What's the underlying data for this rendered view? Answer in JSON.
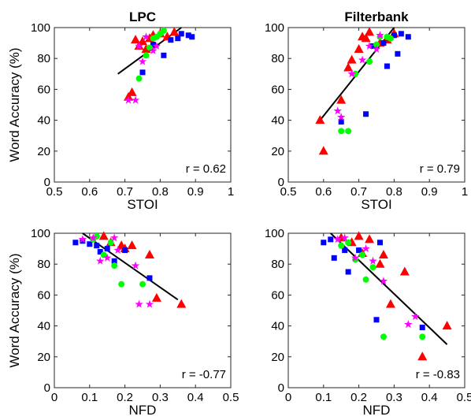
{
  "chart_data": [
    {
      "type": "scatter",
      "title": "LPC",
      "xlabel": "STOI",
      "ylabel": "Word Accuracy (%)",
      "xlim": [
        0.5,
        1
      ],
      "ylim": [
        0,
        100
      ],
      "xticks": [
        "0.5",
        "0.6",
        "0.7",
        "0.8",
        "0.9",
        "1"
      ],
      "yticks": [
        "0",
        "20",
        "40",
        "60",
        "80",
        "100"
      ],
      "annotation": "r = 0.62",
      "fit_line": [
        [
          0.68,
          70
        ],
        [
          0.86,
          100
        ]
      ],
      "series": [
        {
          "marker": "triangle",
          "color": "#ff0000",
          "points": [
            [
              0.71,
              55
            ],
            [
              0.72,
              58
            ],
            [
              0.73,
              92
            ],
            [
              0.74,
              88
            ],
            [
              0.75,
              91
            ],
            [
              0.76,
              86
            ],
            [
              0.77,
              93
            ],
            [
              0.78,
              95
            ],
            [
              0.8,
              96
            ],
            [
              0.82,
              94
            ],
            [
              0.84,
              97
            ]
          ]
        },
        {
          "marker": "square",
          "color": "#0000ff",
          "points": [
            [
              0.75,
              71
            ],
            [
              0.78,
              89
            ],
            [
              0.81,
              82
            ],
            [
              0.83,
              92
            ],
            [
              0.85,
              93
            ],
            [
              0.86,
              96
            ],
            [
              0.88,
              95
            ],
            [
              0.89,
              94
            ]
          ]
        },
        {
          "marker": "circle",
          "color": "#00ff00",
          "points": [
            [
              0.74,
              67
            ],
            [
              0.76,
              82
            ],
            [
              0.77,
              87
            ],
            [
              0.78,
              93
            ],
            [
              0.79,
              94
            ],
            [
              0.8,
              96
            ],
            [
              0.81,
              98
            ]
          ]
        },
        {
          "marker": "star",
          "color": "#ff00ff",
          "points": [
            [
              0.71,
              53
            ],
            [
              0.73,
              53
            ],
            [
              0.74,
              88
            ],
            [
              0.75,
              78
            ],
            [
              0.76,
              94
            ],
            [
              0.78,
              85
            ],
            [
              0.79,
              88
            ]
          ]
        }
      ]
    },
    {
      "type": "scatter",
      "title": "Filterbank",
      "xlabel": "STOI",
      "ylabel": "",
      "xlim": [
        0.5,
        1
      ],
      "ylim": [
        0,
        100
      ],
      "xticks": [
        "0.5",
        "0.6",
        "0.7",
        "0.8",
        "0.9",
        "1"
      ],
      "yticks": [
        "0",
        "20",
        "40",
        "60",
        "80",
        "100"
      ],
      "annotation": "r = 0.79",
      "fit_line": [
        [
          0.59,
          40
        ],
        [
          0.8,
          100
        ]
      ],
      "series": [
        {
          "marker": "triangle",
          "color": "#ff0000",
          "points": [
            [
              0.59,
              40
            ],
            [
              0.6,
              20
            ],
            [
              0.65,
              53
            ],
            [
              0.67,
              74
            ],
            [
              0.68,
              79
            ],
            [
              0.7,
              86
            ],
            [
              0.71,
              94
            ],
            [
              0.72,
              93
            ],
            [
              0.73,
              97
            ],
            [
              0.76,
              90
            ],
            [
              0.78,
              92
            ],
            [
              0.8,
              96
            ]
          ]
        },
        {
          "marker": "square",
          "color": "#0000ff",
          "points": [
            [
              0.65,
              39
            ],
            [
              0.72,
              44
            ],
            [
              0.74,
              88
            ],
            [
              0.77,
              90
            ],
            [
              0.78,
              75
            ],
            [
              0.8,
              95
            ],
            [
              0.81,
              83
            ],
            [
              0.82,
              96
            ],
            [
              0.84,
              94
            ]
          ]
        },
        {
          "marker": "circle",
          "color": "#00ff00",
          "points": [
            [
              0.65,
              33
            ],
            [
              0.67,
              33
            ],
            [
              0.69,
              70
            ],
            [
              0.73,
              78
            ],
            [
              0.75,
              89
            ],
            [
              0.76,
              94
            ],
            [
              0.78,
              94
            ],
            [
              0.79,
              93
            ]
          ]
        },
        {
          "marker": "star",
          "color": "#ff00ff",
          "points": [
            [
              0.64,
              46
            ],
            [
              0.65,
              42
            ],
            [
              0.68,
              70
            ],
            [
              0.71,
              79
            ],
            [
              0.73,
              88
            ],
            [
              0.75,
              86
            ],
            [
              0.76,
              95
            ]
          ]
        }
      ]
    },
    {
      "type": "scatter",
      "title": "",
      "xlabel": "NFD",
      "ylabel": "Word Accuracy (%)",
      "xlim": [
        0,
        0.5
      ],
      "ylim": [
        0,
        100
      ],
      "xticks": [
        "0",
        "0.1",
        "0.2",
        "0.3",
        "0.4",
        "0.5"
      ],
      "yticks": [
        "0",
        "20",
        "40",
        "60",
        "80",
        "100"
      ],
      "annotation": "r = -0.77",
      "fit_line": [
        [
          0.08,
          100
        ],
        [
          0.35,
          57
        ]
      ],
      "series": [
        {
          "marker": "triangle",
          "color": "#ff0000",
          "points": [
            [
              0.14,
              98
            ],
            [
              0.16,
              94
            ],
            [
              0.19,
              92
            ],
            [
              0.2,
              90
            ],
            [
              0.22,
              92
            ],
            [
              0.27,
              86
            ],
            [
              0.29,
              58
            ],
            [
              0.36,
              54
            ]
          ]
        },
        {
          "marker": "square",
          "color": "#0000ff",
          "points": [
            [
              0.06,
              94
            ],
            [
              0.08,
              95
            ],
            [
              0.1,
              93
            ],
            [
              0.12,
              92
            ],
            [
              0.13,
              88
            ],
            [
              0.15,
              90
            ],
            [
              0.17,
              82
            ],
            [
              0.2,
              89
            ],
            [
              0.27,
              71
            ]
          ]
        },
        {
          "marker": "circle",
          "color": "#00ff00",
          "points": [
            [
              0.11,
              96
            ],
            [
              0.12,
              98
            ],
            [
              0.14,
              86
            ],
            [
              0.16,
              94
            ],
            [
              0.17,
              79
            ],
            [
              0.19,
              67
            ],
            [
              0.25,
              67
            ]
          ]
        },
        {
          "marker": "star",
          "color": "#ff00ff",
          "points": [
            [
              0.08,
              96
            ],
            [
              0.11,
              97
            ],
            [
              0.13,
              82
            ],
            [
              0.15,
              84
            ],
            [
              0.17,
              97
            ],
            [
              0.18,
              89
            ],
            [
              0.23,
              79
            ],
            [
              0.24,
              54
            ],
            [
              0.27,
              54
            ]
          ]
        }
      ]
    },
    {
      "type": "scatter",
      "title": "",
      "xlabel": "NFD",
      "ylabel": "",
      "xlim": [
        0,
        0.5
      ],
      "ylim": [
        0,
        100
      ],
      "xticks": [
        "0",
        "0.1",
        "0.2",
        "0.3",
        "0.4",
        "0.5"
      ],
      "yticks": [
        "0",
        "20",
        "40",
        "60",
        "80",
        "100"
      ],
      "annotation": "r = -0.83",
      "fit_line": [
        [
          0.12,
          100
        ],
        [
          0.45,
          28
        ]
      ],
      "series": [
        {
          "marker": "triangle",
          "color": "#ff0000",
          "points": [
            [
              0.15,
              97
            ],
            [
              0.18,
              94
            ],
            [
              0.2,
              98
            ],
            [
              0.21,
              87
            ],
            [
              0.23,
              96
            ],
            [
              0.26,
              80
            ],
            [
              0.27,
              86
            ],
            [
              0.29,
              54
            ],
            [
              0.33,
              75
            ],
            [
              0.38,
              20
            ],
            [
              0.45,
              40
            ]
          ]
        },
        {
          "marker": "square",
          "color": "#0000ff",
          "points": [
            [
              0.1,
              94
            ],
            [
              0.12,
              96
            ],
            [
              0.13,
              84
            ],
            [
              0.16,
              89
            ],
            [
              0.17,
              75
            ],
            [
              0.2,
              89
            ],
            [
              0.25,
              44
            ],
            [
              0.26,
              94
            ],
            [
              0.38,
              39
            ]
          ]
        },
        {
          "marker": "circle",
          "color": "#00ff00",
          "points": [
            [
              0.15,
              92
            ],
            [
              0.17,
              94
            ],
            [
              0.19,
              83
            ],
            [
              0.21,
              86
            ],
            [
              0.22,
              70
            ],
            [
              0.24,
              78
            ],
            [
              0.27,
              33
            ],
            [
              0.38,
              33
            ]
          ]
        },
        {
          "marker": "star",
          "color": "#ff00ff",
          "points": [
            [
              0.14,
              96
            ],
            [
              0.16,
              97
            ],
            [
              0.19,
              84
            ],
            [
              0.22,
              90
            ],
            [
              0.24,
              82
            ],
            [
              0.27,
              69
            ],
            [
              0.34,
              41
            ],
            [
              0.36,
              46
            ]
          ]
        }
      ]
    }
  ]
}
